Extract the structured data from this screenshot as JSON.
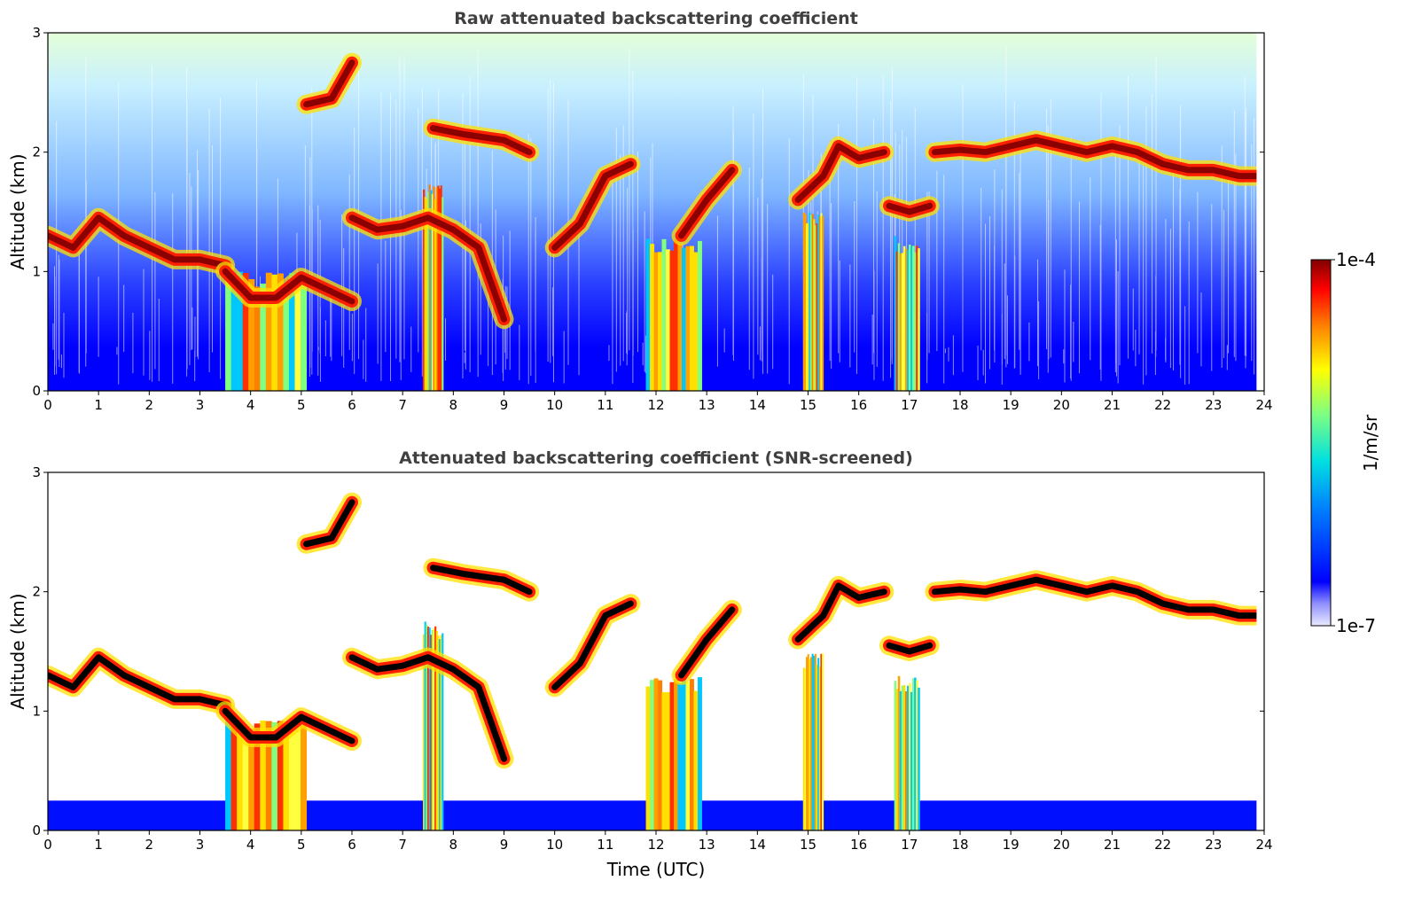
{
  "chart_data": [
    {
      "type": "heatmap",
      "title": "Raw attenuated backscattering coefficient",
      "xlabel": "",
      "ylabel": "Altitude (km)",
      "xlim": [
        0,
        24
      ],
      "ylim": [
        0,
        3
      ],
      "xticks": [
        0,
        1,
        2,
        3,
        4,
        5,
        6,
        7,
        8,
        9,
        10,
        11,
        12,
        13,
        14,
        15,
        16,
        17,
        18,
        19,
        20,
        21,
        22,
        23,
        24
      ],
      "yticks": [
        0,
        1,
        2,
        3
      ],
      "screened": false,
      "colorscale": "jet",
      "data_end_x": 23.85,
      "layers": [
        {
          "x": [
            0,
            0.5,
            1,
            1.5,
            2,
            2.5,
            3,
            3.5
          ],
          "y": [
            1.3,
            1.2,
            1.45,
            1.3,
            1.2,
            1.1,
            1.1,
            1.05
          ]
        },
        {
          "x": [
            3.5,
            4,
            4.5,
            5,
            5.5,
            6
          ],
          "y": [
            1.0,
            0.78,
            0.78,
            0.95,
            0.85,
            0.75
          ]
        },
        {
          "x": [
            6,
            6.5,
            7,
            7.5,
            8,
            8.5,
            9
          ],
          "y": [
            1.45,
            1.35,
            1.38,
            1.45,
            1.35,
            1.2,
            0.6
          ]
        },
        {
          "x": [
            5.1,
            5.6,
            6.0
          ],
          "y": [
            2.4,
            2.45,
            2.75
          ]
        },
        {
          "x": [
            7.6,
            8.2,
            9.0,
            9.5
          ],
          "y": [
            2.2,
            2.15,
            2.1,
            2.0
          ]
        },
        {
          "x": [
            10,
            10.5,
            11,
            11.5
          ],
          "y": [
            1.2,
            1.4,
            1.8,
            1.9
          ]
        },
        {
          "x": [
            12.5,
            13,
            13.5
          ],
          "y": [
            1.3,
            1.6,
            1.85
          ]
        },
        {
          "x": [
            14.8,
            15.3,
            15.6,
            16,
            16.5
          ],
          "y": [
            1.6,
            1.8,
            2.05,
            1.95,
            2.0
          ]
        },
        {
          "x": [
            16.6,
            17,
            17.4
          ],
          "y": [
            1.55,
            1.5,
            1.55
          ]
        },
        {
          "x": [
            17.5,
            18,
            18.5,
            19,
            19.5,
            20,
            20.5,
            21,
            21.5,
            22,
            22.5,
            23,
            23.5,
            23.85
          ],
          "y": [
            2.0,
            2.02,
            2.0,
            2.05,
            2.1,
            2.05,
            2.0,
            2.05,
            2.0,
            1.9,
            1.85,
            1.85,
            1.8,
            1.8
          ]
        }
      ],
      "columns": [
        {
          "x0": 3.5,
          "x1": 5.1,
          "top": 1.0
        },
        {
          "x0": 7.4,
          "x1": 7.8,
          "top": 1.75
        },
        {
          "x0": 11.8,
          "x1": 12.9,
          "top": 1.3
        },
        {
          "x0": 14.9,
          "x1": 15.3,
          "top": 1.5
        },
        {
          "x0": 16.7,
          "x1": 17.2,
          "top": 1.3
        }
      ]
    },
    {
      "type": "heatmap",
      "title": "Attenuated backscattering coefficient (SNR-screened)",
      "xlabel": "Time (UTC)",
      "ylabel": "Altitude (km)",
      "xlim": [
        0,
        24
      ],
      "ylim": [
        0,
        3
      ],
      "xticks": [
        0,
        1,
        2,
        3,
        4,
        5,
        6,
        7,
        8,
        9,
        10,
        11,
        12,
        13,
        14,
        15,
        16,
        17,
        18,
        19,
        20,
        21,
        22,
        23,
        24
      ],
      "yticks": [
        0,
        1,
        2,
        3
      ],
      "screened": true,
      "colorscale": "jet",
      "data_end_x": 23.85
    }
  ],
  "colorbar": {
    "label": "1/m/sr",
    "max_label": "1e-4",
    "min_label": "1e-7"
  }
}
